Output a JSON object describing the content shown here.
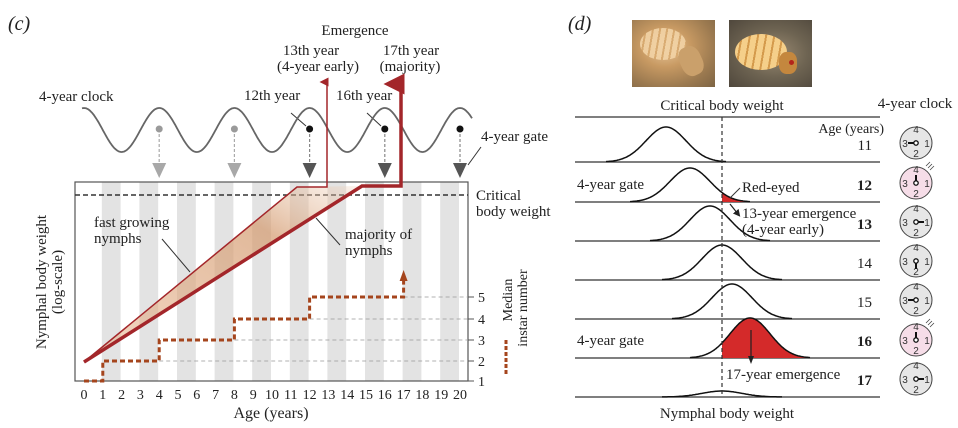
{
  "panel_c": {
    "label": "(c)",
    "emergence_title": "Emergence",
    "emergence_13_line1": "13th year",
    "emergence_13_line2": "(4-year early)",
    "emergence_17_line1": "17th year",
    "emergence_17_line2": "(majority)",
    "clock_label": "4-year clock",
    "year12_label": "12th year",
    "year16_label": "16th year",
    "gate_label": "4-year gate",
    "critical_line1": "Critical",
    "critical_line2": "body weight",
    "fast_line1": "fast growing",
    "fast_line2": "nymphs",
    "majority_line1": "majority of",
    "majority_line2": "nymphs",
    "ylabel_line1": "Nymphal body weight",
    "ylabel_line2": "(log-scale)",
    "instar_line1": "Median",
    "instar_line2": "instar number",
    "xlabel": "Age (years)",
    "colors": {
      "thin_path": "#a3262a",
      "thick_path": "#a3262a",
      "instar": "#a5451d",
      "stripe": "#e3e3e3",
      "gate_faded": "#a8a8a8",
      "gate_active": "#555555"
    }
  },
  "chart_data": {
    "type": "line",
    "title": "",
    "xlabel": "Age (years)",
    "ylabel": "Nymphal body weight (log-scale)",
    "xlim": [
      0,
      20
    ],
    "x_ticks": [
      "0",
      "1",
      "2",
      "3",
      "4",
      "5",
      "6",
      "7",
      "8",
      "9",
      "10",
      "11",
      "12",
      "13",
      "14",
      "15",
      "16",
      "17",
      "18",
      "19",
      "20"
    ],
    "right_axis_ticks": [
      "1",
      "2",
      "3",
      "4",
      "5"
    ],
    "gates_years": [
      4,
      8,
      12,
      16,
      20
    ],
    "active_gates_years": [
      12,
      16,
      20
    ],
    "series": [
      {
        "name": "fast growing nymphs",
        "x": [
          0,
          11.5,
          13,
          13
        ],
        "y_note": "reaches critical body weight ~11.5 yr, emerges year 13"
      },
      {
        "name": "majority of nymphs",
        "x": [
          0,
          15,
          17,
          17
        ],
        "y_note": "reaches critical body weight ~15 yr, emerges year 17"
      },
      {
        "name": "Median instar number",
        "steps": [
          {
            "from": 0,
            "to": 1,
            "instar": 1
          },
          {
            "from": 1,
            "to": 4,
            "instar": 2
          },
          {
            "from": 4,
            "to": 8,
            "instar": 3
          },
          {
            "from": 8,
            "to": 12,
            "instar": 4
          },
          {
            "from": 12,
            "to": 17,
            "instar": 5
          }
        ]
      }
    ]
  },
  "panel_d": {
    "label": "(d)",
    "critical_label": "Critical body weight",
    "clock_title": "4-year clock",
    "age_header": "Age (years)",
    "xlabel": "Nymphal body weight",
    "red_eyed_label": "Red-eyed",
    "em13_line1": "13-year emergence",
    "em13_line2": "(4-year early)",
    "em17_label": "17-year emergence",
    "rows": [
      {
        "age": "11",
        "gate": "",
        "highlight": false,
        "clock_hand": "3",
        "clock_active": false
      },
      {
        "age": "12",
        "gate": "4-year gate",
        "highlight": true,
        "clock_hand": "4",
        "clock_active": true
      },
      {
        "age": "13",
        "gate": "",
        "highlight": false,
        "clock_hand": "1",
        "clock_active": false
      },
      {
        "age": "14",
        "gate": "",
        "highlight": false,
        "clock_hand": "2",
        "clock_active": false
      },
      {
        "age": "15",
        "gate": "",
        "highlight": false,
        "clock_hand": "3",
        "clock_active": false
      },
      {
        "age": "16",
        "gate": "4-year gate",
        "highlight": true,
        "clock_hand": "4",
        "clock_active": true
      },
      {
        "age": "17",
        "gate": "",
        "highlight": false,
        "clock_hand": "1",
        "clock_active": false
      }
    ],
    "clock_numbers": [
      "4",
      "1",
      "2",
      "3"
    ],
    "colors": {
      "highlight_age": "#c0272d",
      "fill_red": "#d42a2a",
      "clock_active_bg": "#f6dde8",
      "clock_bg": "#e6e6e6"
    },
    "photos": [
      {
        "alt": "cicada nymph photo 1"
      },
      {
        "alt": "cicada nymph photo 2"
      }
    ]
  }
}
